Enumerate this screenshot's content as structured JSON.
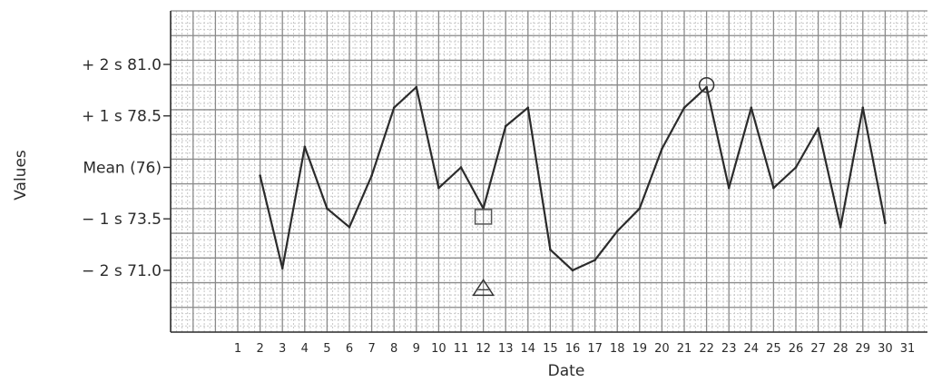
{
  "chart_data": {
    "type": "line",
    "title": "",
    "xlabel": "Date",
    "ylabel": "Values",
    "x_ticks": [
      "1",
      "2",
      "3",
      "4",
      "5",
      "6",
      "7",
      "8",
      "9",
      "10",
      "11",
      "12",
      "13",
      "14",
      "15",
      "16",
      "17",
      "18",
      "19",
      "20",
      "21",
      "22",
      "23",
      "24",
      "25",
      "26",
      "27",
      "28",
      "29",
      "30",
      "31"
    ],
    "y_ticks": [
      {
        "value": 81.0,
        "label": "+ 2 s  81.0"
      },
      {
        "value": 78.5,
        "label": "+ 1 s  78.5"
      },
      {
        "value": 76.0,
        "label": "Mean (76)"
      },
      {
        "value": 73.5,
        "label": "− 1 s  73.5"
      },
      {
        "value": 71.0,
        "label": "− 2 s  71.0"
      }
    ],
    "xlim": [
      1,
      31
    ],
    "ylim": [
      68.0,
      83.6
    ],
    "grid": true,
    "series": [
      {
        "x": [
          2,
          3,
          4,
          5,
          6,
          7,
          8,
          9,
          10,
          11,
          12,
          13,
          14,
          15,
          16,
          17,
          18,
          19,
          20,
          21,
          22,
          23,
          24,
          25,
          26,
          27,
          28,
          29,
          30
        ],
        "values": [
          75.6,
          71.1,
          77.0,
          74.0,
          73.1,
          75.6,
          78.9,
          79.9,
          75.0,
          76.0,
          74.0,
          78.0,
          78.9,
          72.0,
          71.0,
          71.5,
          72.9,
          74.0,
          76.9,
          78.9,
          79.9,
          75.0,
          78.9,
          75.0,
          76.0,
          77.9,
          73.1,
          78.9,
          73.3
        ]
      }
    ],
    "annotations": [
      {
        "type": "circle",
        "x": 22,
        "y": 80.0
      },
      {
        "type": "square",
        "x": 12,
        "y": 73.6
      },
      {
        "type": "triangle",
        "x": 12,
        "y": 70.1
      }
    ],
    "colors": {
      "line": "#2b2b2b",
      "grid_major": "#8a8a8a",
      "grid_minor": "#c9c9c9"
    }
  }
}
